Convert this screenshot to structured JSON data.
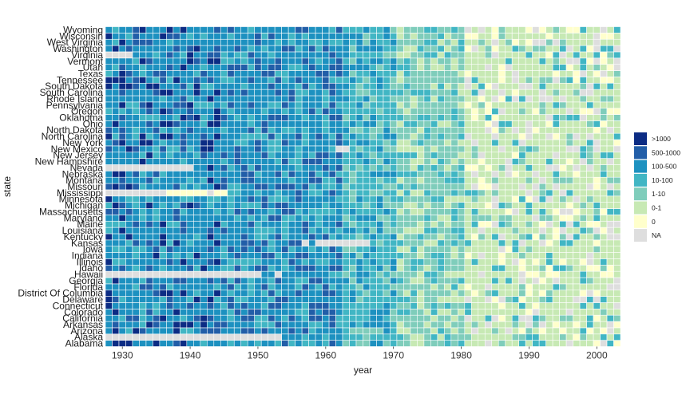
{
  "chart_data": {
    "type": "heatmap",
    "xlabel": "year",
    "ylabel": "state",
    "x_range": [
      1928,
      2003
    ],
    "x_ticks": [
      1930,
      1940,
      1950,
      1960,
      1970,
      1980,
      1990,
      2000
    ],
    "states": [
      "Alabama",
      "Alaska",
      "Arizona",
      "Arkansas",
      "California",
      "Colorado",
      "Connecticut",
      "Delaware",
      "District Of Columbia",
      "Florida",
      "Georgia",
      "Hawaii",
      "Idaho",
      "Illinois",
      "Indiana",
      "Iowa",
      "Kansas",
      "Kentucky",
      "Louisiana",
      "Maine",
      "Maryland",
      "Massachusetts",
      "Michigan",
      "Minnesota",
      "Mississippi",
      "Missouri",
      "Montana",
      "Nebraska",
      "Nevada",
      "New Hampshire",
      "New Jersey",
      "New Mexico",
      "New York",
      "North Carolina",
      "North Dakota",
      "Ohio",
      "Oklahoma",
      "Oregon",
      "Pennsylvania",
      "Rhode Island",
      "South Carolina",
      "South Dakota",
      "Tennessee",
      "Texas",
      "Utah",
      "Vermont",
      "Virginia",
      "Washington",
      "West Virginia",
      "Wisconsin",
      "Wyoming"
    ],
    "legend": {
      "position": "right",
      "entries": [
        ">1000",
        "500-1000",
        "100-500",
        "10-100",
        "1-10",
        "0-1",
        "0",
        "NA"
      ],
      "colors": [
        "#0c2c84",
        "#225ea8",
        "#1d91c0",
        "#41b6c4",
        "#7fcdbb",
        "#c7e9b4",
        "#ffffcc",
        "#dedede"
      ]
    },
    "missing_spans": [
      {
        "state": "Alaska",
        "from": 1928,
        "to": 1953
      },
      {
        "state": "Hawaii",
        "from": 1928,
        "to": 1950
      },
      {
        "state": "Hawaii",
        "from": 1953,
        "to": 1953
      },
      {
        "state": "Kansas",
        "from": 1957,
        "to": 1957
      },
      {
        "state": "Kansas",
        "from": 1959,
        "to": 1966
      },
      {
        "state": "Mississippi",
        "from": 1928,
        "to": 1936
      },
      {
        "state": "Mississippi",
        "from": 1943,
        "to": 1943
      },
      {
        "state": "Nevada",
        "from": 1928,
        "to": 1940
      },
      {
        "state": "New Mexico",
        "from": 1962,
        "to": 1963
      },
      {
        "state": "Virginia",
        "from": 1928,
        "to": 1931
      }
    ],
    "zero_spans": [
      {
        "state": "Mississippi",
        "from": 1937,
        "to": 1942
      },
      {
        "state": "Mississippi",
        "from": 1944,
        "to": 1945
      }
    ],
    "period_pattern": [
      {
        "from": 1928,
        "to": 1944,
        "category": "100-500",
        "mix": [
          "500-1000",
          ">1000",
          "10-100"
        ]
      },
      {
        "from": 1945,
        "to": 1962,
        "category": "100-500",
        "mix": [
          "10-100",
          "500-1000"
        ]
      },
      {
        "from": 1963,
        "to": 1970,
        "category": "10-100",
        "mix": [
          "100-500",
          "1-10"
        ]
      },
      {
        "from": 1971,
        "to": 1980,
        "category": "1-10",
        "mix": [
          "10-100",
          "0-1"
        ]
      },
      {
        "from": 1981,
        "to": 2003,
        "category": "0-1",
        "mix": [
          "NA",
          "0",
          "1-10",
          "10-100"
        ]
      }
    ]
  }
}
